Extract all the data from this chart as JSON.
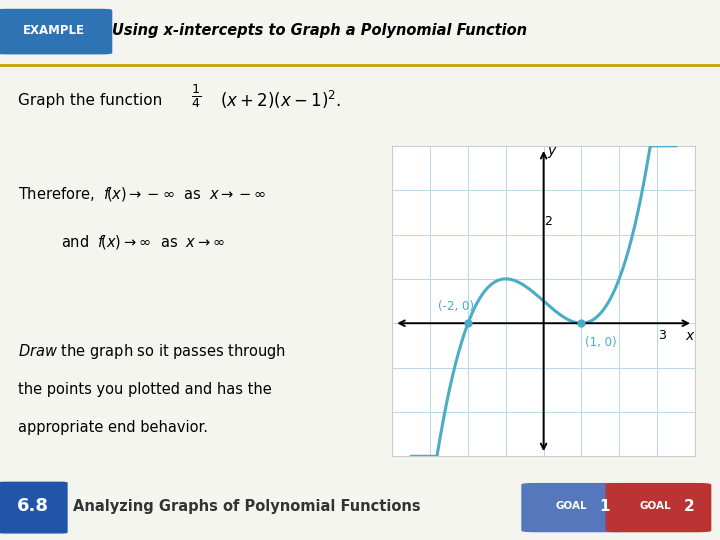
{
  "title": "Using x-intercepts to Graph a Polynomial Function",
  "example_bg": "#2E74B5",
  "example_text": "EXAMPLE",
  "problem_bg": "#C9DEF0",
  "footer_bg": "#E0D8BE",
  "curve_color": "#4BACC6",
  "grid_color": "#B8D8E8",
  "axis_color": "#000000",
  "label_color": "#4BACC6",
  "gold_line": "#C8A000",
  "x_min": -4,
  "x_max": 4,
  "y_min": -3,
  "y_max": 4,
  "footer_text": "Analyzing Graphs of Polynomial Functions",
  "footer_num": "6.8",
  "footer_badge_color": "#2255AA",
  "goal1_color": "#5577BB",
  "goal2_color": "#BB3333"
}
